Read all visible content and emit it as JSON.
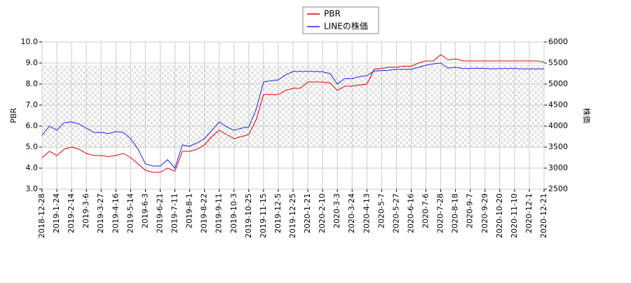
{
  "chart_data": {
    "type": "line",
    "categories": [
      "2018-12-28",
      null,
      "2019-1-24",
      null,
      "2019-2-14",
      null,
      "2019-3-6",
      null,
      "2019-3-27",
      null,
      "2019-4-16",
      null,
      "2019-5-14",
      null,
      "2019-6-3",
      null,
      "2019-6-21",
      null,
      "2019-7-11",
      null,
      "2019-8-1",
      null,
      "2019-8-22",
      null,
      "2019-9-11",
      null,
      "2019-10-3",
      null,
      "2019-10-25",
      null,
      "2019-11-15",
      null,
      "2019-12-5",
      null,
      "2019-12-25",
      null,
      "2020-1-21",
      null,
      "2020-2-10",
      null,
      "2020-3-3",
      null,
      "2020-3-24",
      null,
      "2020-4-13",
      null,
      "2020-5-7",
      null,
      "2020-5-27",
      null,
      "2020-6-16",
      null,
      "2020-7-6",
      null,
      "2020-7-28",
      null,
      "2020-8-18",
      null,
      "2020-9-7",
      null,
      "2020-9-29",
      null,
      "2020-10-20",
      null,
      "2020-11-10",
      null,
      "2020-12-1",
      null,
      "2020-12-21"
    ],
    "series": [
      {
        "name": "PBR",
        "color": "#dd0000",
        "values": [
          4.5,
          4.8,
          4.6,
          4.9,
          5.0,
          4.9,
          4.7,
          4.6,
          4.6,
          4.55,
          4.6,
          4.7,
          4.5,
          4.2,
          3.9,
          3.8,
          3.8,
          4.0,
          3.85,
          4.8,
          4.8,
          4.9,
          5.1,
          5.5,
          5.8,
          5.6,
          5.4,
          5.5,
          5.6,
          6.3,
          7.5,
          7.5,
          7.5,
          7.7,
          7.8,
          7.8,
          8.1,
          8.1,
          8.1,
          8.05,
          7.7,
          7.9,
          7.9,
          7.95,
          8.0,
          8.7,
          8.75,
          8.8,
          8.8,
          8.85,
          8.85,
          9.0,
          9.1,
          9.1,
          9.4,
          9.15,
          9.2,
          9.1,
          9.1,
          9.1,
          9.1,
          9.1,
          9.1,
          9.1,
          9.1,
          9.1,
          9.1,
          9.1,
          9.05
        ]
      },
      {
        "name": "LINEの株価",
        "color": "#2222dd",
        "axis": "y2",
        "values": [
          3780,
          4000,
          3900,
          4080,
          4100,
          4050,
          3950,
          3850,
          3850,
          3820,
          3870,
          3850,
          3700,
          3450,
          3100,
          3050,
          3050,
          3200,
          3000,
          3550,
          3520,
          3600,
          3700,
          3900,
          4100,
          3980,
          3900,
          3950,
          3980,
          4400,
          5050,
          5080,
          5100,
          5220,
          5300,
          5300,
          5300,
          5300,
          5290,
          5250,
          5000,
          5130,
          5130,
          5180,
          5200,
          5310,
          5320,
          5330,
          5350,
          5350,
          5350,
          5400,
          5450,
          5480,
          5500,
          5380,
          5400,
          5370,
          5370,
          5380,
          5370,
          5360,
          5370,
          5370,
          5370,
          5360,
          5360,
          5360,
          5360
        ]
      }
    ],
    "ylabel": "PBR",
    "y2label": "株価",
    "ylim": [
      3.0,
      10.0
    ],
    "yticks": [
      {
        "value": 3,
        "label": "3.0"
      },
      {
        "value": 4,
        "label": "4.0"
      },
      {
        "value": 5,
        "label": "5.0"
      },
      {
        "value": 6,
        "label": "6.0"
      },
      {
        "value": 7,
        "label": "7.0"
      },
      {
        "value": 8,
        "label": "8.0"
      },
      {
        "value": 9,
        "label": "9.0"
      },
      {
        "value": 10,
        "label": "10.0"
      }
    ],
    "y2lim": [
      2500,
      6000
    ],
    "y2ticks": [
      2500,
      3000,
      3500,
      4000,
      4500,
      5000,
      5500,
      6000
    ],
    "shaded_band": [
      4.97,
      8.9
    ],
    "grid": true,
    "legend": "top"
  }
}
